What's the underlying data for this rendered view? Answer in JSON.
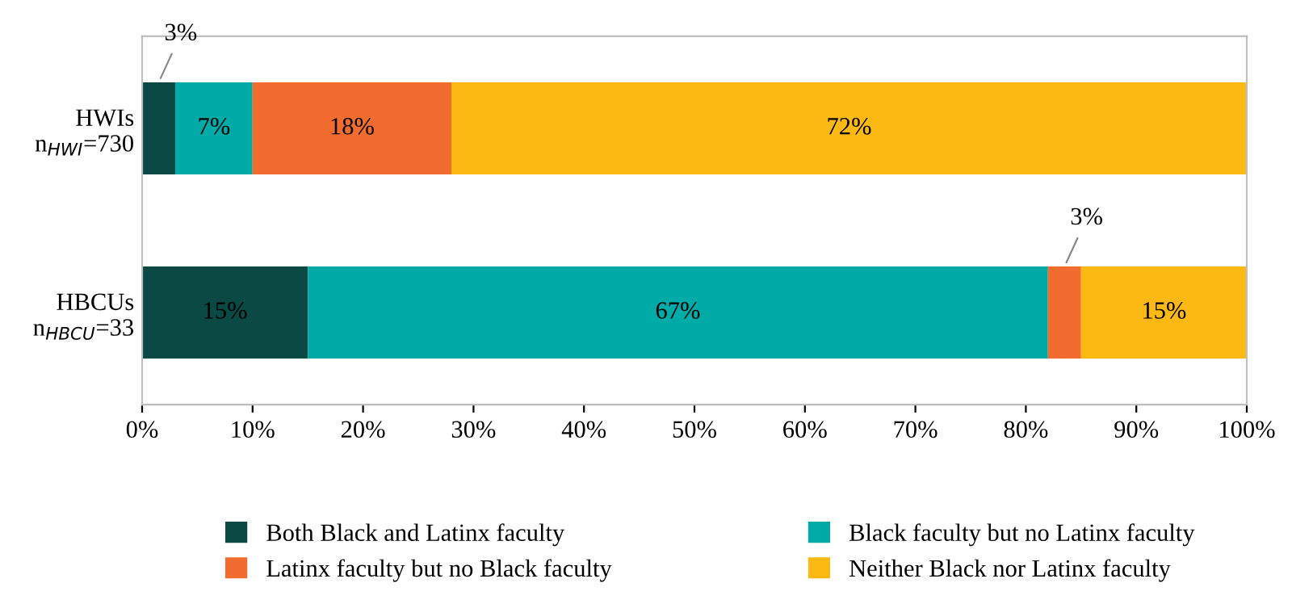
{
  "chart_data": {
    "type": "bar",
    "orientation": "horizontal",
    "stacked": true,
    "legend": "bottom",
    "grid": false,
    "categories": [
      "HWIs\nn$_{HWI}$=730",
      "HBCUs\nn$_{HBCU}$=33"
    ],
    "series": [
      {
        "name": "Both Black and Latinx faculty",
        "color": "#0b4a44",
        "values": [
          3,
          15
        ],
        "value_labels": [
          "3%",
          "15%"
        ]
      },
      {
        "name": "Black faculty but no Latinx faculty",
        "color": "#00aaa6",
        "values": [
          7,
          67
        ],
        "value_labels": [
          "7%",
          "67%"
        ]
      },
      {
        "name": "Latinx faculty but no Black faculty",
        "color": "#f26c30",
        "values": [
          18,
          3
        ],
        "value_labels": [
          "18%",
          "3%"
        ]
      },
      {
        "name": "Neither Black nor Latinx faculty",
        "color": "#fcb813",
        "values": [
          72,
          15
        ],
        "value_labels": [
          "72%",
          "15%"
        ]
      }
    ],
    "xlim": [
      0,
      100
    ],
    "xticks": [
      {
        "value": 0,
        "label": "0%"
      },
      {
        "value": 10,
        "label": "10%"
      },
      {
        "value": 20,
        "label": "20%"
      },
      {
        "value": 30,
        "label": "30%"
      },
      {
        "value": 40,
        "label": "40%"
      },
      {
        "value": 50,
        "label": "50%"
      },
      {
        "value": 60,
        "label": "60%"
      },
      {
        "value": 70,
        "label": "70%"
      },
      {
        "value": 80,
        "label": "80%"
      },
      {
        "value": 90,
        "label": "90%"
      },
      {
        "value": 100,
        "label": "100%"
      }
    ]
  }
}
